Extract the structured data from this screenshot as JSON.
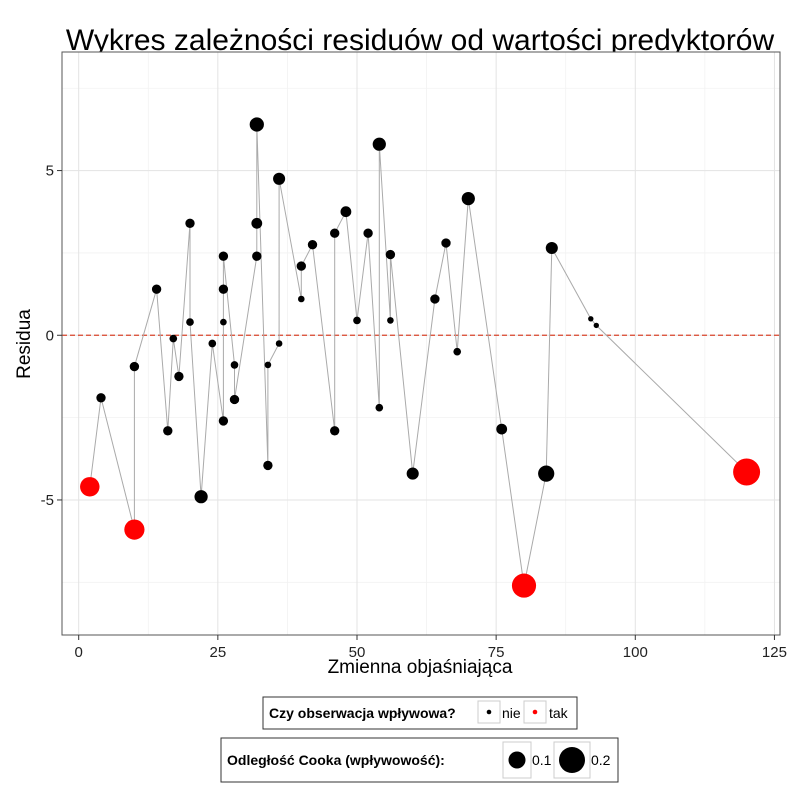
{
  "chart_data": {
    "type": "scatter",
    "title": "Wykres zależności residuów od wartości predyktorów",
    "xlabel": "Zmienna objaśniająca",
    "ylabel": "Residua",
    "xlim": [
      -3,
      126
    ],
    "ylim": [
      -9.1,
      8.6
    ],
    "x_ticks": [
      0,
      25,
      50,
      75,
      100,
      125
    ],
    "y_ticks": [
      -5,
      0,
      5
    ],
    "x_tick_labels": [
      "0",
      "25",
      "50",
      "75",
      "100",
      "125"
    ],
    "y_tick_labels": [
      "-5",
      "0",
      "5"
    ],
    "grid": true,
    "reference_line": {
      "y": 0,
      "style": "dashed",
      "color": "#d9442b"
    },
    "connecting_line_color": "#aaaaaa",
    "colors": {
      "nie": "#000000",
      "tak": "#ff0000"
    },
    "points": [
      {
        "x": 2,
        "y": -4.6,
        "cook": 0.13,
        "influential": true
      },
      {
        "x": 4,
        "y": -1.9,
        "cook": 0.03,
        "influential": false
      },
      {
        "x": 10,
        "y": -5.9,
        "cook": 0.14,
        "influential": true
      },
      {
        "x": 10,
        "y": -0.95,
        "cook": 0.03,
        "influential": false
      },
      {
        "x": 14,
        "y": 1.4,
        "cook": 0.03,
        "influential": false
      },
      {
        "x": 16,
        "y": -2.9,
        "cook": 0.03,
        "influential": false
      },
      {
        "x": 17,
        "y": -0.1,
        "cook": 0.02,
        "influential": false
      },
      {
        "x": 18,
        "y": -1.25,
        "cook": 0.03,
        "influential": false
      },
      {
        "x": 20,
        "y": 3.4,
        "cook": 0.03,
        "influential": false
      },
      {
        "x": 20,
        "y": 0.4,
        "cook": 0.02,
        "influential": false
      },
      {
        "x": 22,
        "y": -4.9,
        "cook": 0.06,
        "influential": false
      },
      {
        "x": 24,
        "y": -0.25,
        "cook": 0.02,
        "influential": false
      },
      {
        "x": 26,
        "y": -2.6,
        "cook": 0.03,
        "influential": false
      },
      {
        "x": 26,
        "y": 0.4,
        "cook": 0.015,
        "influential": false
      },
      {
        "x": 26,
        "y": 1.4,
        "cook": 0.03,
        "influential": false
      },
      {
        "x": 26,
        "y": 2.4,
        "cook": 0.03,
        "influential": false
      },
      {
        "x": 28,
        "y": -0.9,
        "cook": 0.02,
        "influential": false
      },
      {
        "x": 28,
        "y": -1.95,
        "cook": 0.03,
        "influential": false
      },
      {
        "x": 32,
        "y": 2.4,
        "cook": 0.03,
        "influential": false
      },
      {
        "x": 32,
        "y": 3.4,
        "cook": 0.04,
        "influential": false
      },
      {
        "x": 32,
        "y": 6.4,
        "cook": 0.07,
        "influential": false
      },
      {
        "x": 34,
        "y": -3.95,
        "cook": 0.03,
        "influential": false
      },
      {
        "x": 34,
        "y": -0.9,
        "cook": 0.015,
        "influential": false
      },
      {
        "x": 36,
        "y": -0.25,
        "cook": 0.015,
        "influential": false
      },
      {
        "x": 36,
        "y": 4.75,
        "cook": 0.05,
        "influential": false
      },
      {
        "x": 40,
        "y": 1.1,
        "cook": 0.015,
        "influential": false
      },
      {
        "x": 40,
        "y": 2.1,
        "cook": 0.03,
        "influential": false
      },
      {
        "x": 42,
        "y": 2.75,
        "cook": 0.03,
        "influential": false
      },
      {
        "x": 46,
        "y": -2.9,
        "cook": 0.03,
        "influential": false
      },
      {
        "x": 46,
        "y": 3.1,
        "cook": 0.03,
        "influential": false
      },
      {
        "x": 48,
        "y": 3.75,
        "cook": 0.04,
        "influential": false
      },
      {
        "x": 50,
        "y": 0.45,
        "cook": 0.02,
        "influential": false
      },
      {
        "x": 52,
        "y": 3.1,
        "cook": 0.03,
        "influential": false
      },
      {
        "x": 54,
        "y": -2.2,
        "cook": 0.02,
        "influential": false
      },
      {
        "x": 54,
        "y": 5.8,
        "cook": 0.06,
        "influential": false
      },
      {
        "x": 56,
        "y": 0.45,
        "cook": 0.015,
        "influential": false
      },
      {
        "x": 56,
        "y": 2.45,
        "cook": 0.03,
        "influential": false
      },
      {
        "x": 60,
        "y": -4.2,
        "cook": 0.05,
        "influential": false
      },
      {
        "x": 64,
        "y": 1.1,
        "cook": 0.03,
        "influential": false
      },
      {
        "x": 66,
        "y": 2.8,
        "cook": 0.03,
        "influential": false
      },
      {
        "x": 68,
        "y": -0.5,
        "cook": 0.02,
        "influential": false
      },
      {
        "x": 70,
        "y": 4.15,
        "cook": 0.06,
        "influential": false
      },
      {
        "x": 76,
        "y": -2.85,
        "cook": 0.04,
        "influential": false
      },
      {
        "x": 80,
        "y": -7.6,
        "cook": 0.2,
        "influential": true
      },
      {
        "x": 84,
        "y": -4.2,
        "cook": 0.09,
        "influential": false
      },
      {
        "x": 85,
        "y": 2.65,
        "cook": 0.05,
        "influential": false
      },
      {
        "x": 92,
        "y": 0.5,
        "cook": 0.01,
        "influential": false
      },
      {
        "x": 93,
        "y": 0.3,
        "cook": 0.01,
        "influential": false
      },
      {
        "x": 120,
        "y": -4.15,
        "cook": 0.3,
        "influential": true
      }
    ],
    "legend": {
      "placement": "bottom",
      "color": {
        "title": "Czy obserwacja wpływowa?",
        "entries": [
          {
            "label": "nie",
            "color": "#000000"
          },
          {
            "label": "tak",
            "color": "#ff0000"
          }
        ]
      },
      "size": {
        "title": "Odległość Cooka (wpływowość):",
        "entries": [
          {
            "label": "0.1",
            "value": 0.1
          },
          {
            "label": "0.2",
            "value": 0.2
          }
        ]
      }
    }
  }
}
